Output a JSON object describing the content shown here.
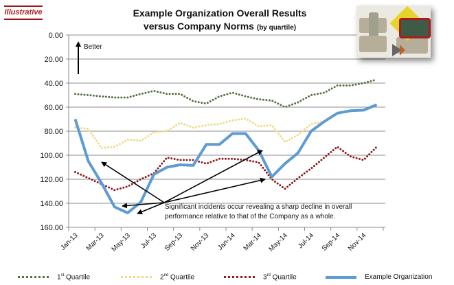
{
  "badge": "Illustrative",
  "title": {
    "line1": "Example Organization Overall Results",
    "line2": "versus Company Norms",
    "line2_sub": "(by quartile)"
  },
  "annotation": {
    "better": "Better",
    "line1": "Significant incidents occur revealing a sharp decline in  overall",
    "line2": "performance relative to that of the Company as a whole."
  },
  "legend": [
    {
      "num": "1",
      "sup": "st",
      "text": " Quartile"
    },
    {
      "num": "2",
      "sup": "nd",
      "text": " Quartile"
    },
    {
      "num": "3",
      "sup": "rd",
      "text": " Quartile"
    },
    {
      "num": "",
      "sup": "",
      "text": "Example  Organization"
    }
  ],
  "colors": {
    "q1": "#557040",
    "q2": "#f3d980",
    "q3": "#8e1b1b",
    "org": "#5d9bd2",
    "grid": "#8c8c8c"
  },
  "chart_data": {
    "type": "line",
    "title": "Example Organization Overall Results versus Company Norms (by quartile)",
    "xlabel": "",
    "ylabel": "",
    "ylim": [
      0,
      160
    ],
    "y_inverted": true,
    "grid": true,
    "legend_position": "bottom",
    "yticks": [
      "0.00",
      "20.00",
      "40.00",
      "60.00",
      "80.00",
      "100.00",
      "120.00",
      "140.00",
      "160.00"
    ],
    "x": [
      "Jan-13",
      "Feb-13",
      "Mar-13",
      "Apr-13",
      "May-13",
      "Jun-13",
      "Jul-13",
      "Aug-13",
      "Sep-13",
      "Oct-13",
      "Nov-13",
      "Dec-13",
      "Jan-14",
      "Feb-14",
      "Mar-14",
      "Apr-14",
      "May-14",
      "Jun-14",
      "Jul-14",
      "Aug-14",
      "Sep-14",
      "Oct-14",
      "Nov-14",
      "Dec-14"
    ],
    "xtick_labels": [
      "Jan-13",
      "Mar-13",
      "May-13",
      "Jul-13",
      "Sep-13",
      "Nov-13",
      "Jan-14",
      "Mar-14",
      "May-14",
      "Jul-14",
      "Sep-14",
      "Nov-14"
    ],
    "series": [
      {
        "name": "1st Quartile",
        "style": "dotted",
        "values": [
          49,
          50,
          51,
          52,
          52,
          49,
          46.5,
          49,
          49,
          55,
          57,
          51,
          48,
          51,
          53.5,
          54.5,
          60,
          56,
          50,
          48,
          42,
          42,
          40,
          37
        ]
      },
      {
        "name": "2nd Quartile",
        "style": "dotted",
        "values": [
          77,
          78,
          94,
          93,
          87,
          88,
          81,
          80,
          73,
          77,
          75,
          74,
          71,
          69.5,
          76,
          75,
          89,
          83,
          74,
          72,
          null,
          null,
          null,
          null
        ]
      },
      {
        "name": "3rd Quartile",
        "style": "dotted",
        "values": [
          114,
          119,
          124,
          129,
          126,
          120,
          115,
          102,
          104,
          104,
          107,
          103,
          103,
          104,
          106,
          120,
          128,
          119,
          111,
          102,
          93,
          101,
          104,
          93
        ]
      },
      {
        "name": "Example Organization",
        "style": "solid",
        "values": [
          70,
          105,
          123,
          143,
          148,
          139,
          116,
          110,
          108,
          108.5,
          91,
          91,
          82,
          82,
          96,
          118,
          107,
          98,
          80,
          72,
          65,
          63,
          62.5,
          58
        ]
      }
    ]
  }
}
